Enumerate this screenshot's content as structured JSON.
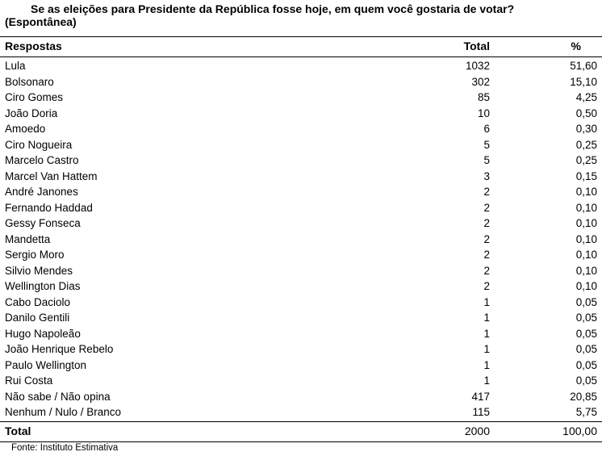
{
  "title": {
    "line1": "Se as eleições para Presidente da República fosse hoje, em quem você gostaria de votar?",
    "line2": "(Espontânea)"
  },
  "header": {
    "name": "Respostas",
    "total": "Total",
    "pct": "%"
  },
  "rows": [
    {
      "name": "Lula",
      "total": "1032",
      "pct": "51,60"
    },
    {
      "name": "Bolsonaro",
      "total": "302",
      "pct": "15,10"
    },
    {
      "name": "Ciro Gomes",
      "total": "85",
      "pct": "4,25"
    },
    {
      "name": "João Doria",
      "total": "10",
      "pct": "0,50"
    },
    {
      "name": "Amoedo",
      "total": "6",
      "pct": "0,30"
    },
    {
      "name": "Ciro Nogueira",
      "total": "5",
      "pct": "0,25"
    },
    {
      "name": "Marcelo Castro",
      "total": "5",
      "pct": "0,25"
    },
    {
      "name": "Marcel Van Hattem",
      "total": "3",
      "pct": "0,15"
    },
    {
      "name": "André Janones",
      "total": "2",
      "pct": "0,10"
    },
    {
      "name": "Fernando Haddad",
      "total": "2",
      "pct": "0,10"
    },
    {
      "name": "Gessy Fonseca",
      "total": "2",
      "pct": "0,10"
    },
    {
      "name": "Mandetta",
      "total": "2",
      "pct": "0,10"
    },
    {
      "name": "Sergio Moro",
      "total": "2",
      "pct": "0,10"
    },
    {
      "name": "Silvio Mendes",
      "total": "2",
      "pct": "0,10"
    },
    {
      "name": "Wellington Dias",
      "total": "2",
      "pct": "0,10"
    },
    {
      "name": "Cabo Daciolo",
      "total": "1",
      "pct": "0,05"
    },
    {
      "name": "Danilo Gentili",
      "total": "1",
      "pct": "0,05"
    },
    {
      "name": "Hugo Napoleão",
      "total": "1",
      "pct": "0,05"
    },
    {
      "name": "João Henrique Rebelo",
      "total": "1",
      "pct": "0,05"
    },
    {
      "name": "Paulo Wellington",
      "total": "1",
      "pct": "0,05"
    },
    {
      "name": "Rui Costa",
      "total": "1",
      "pct": "0,05"
    },
    {
      "name": "Não sabe / Não opina",
      "total": "417",
      "pct": "20,85"
    },
    {
      "name": "Nenhum / Nulo / Branco",
      "total": "115",
      "pct": "5,75"
    }
  ],
  "total_row": {
    "name": "Total",
    "total": "2000",
    "pct": "100,00"
  },
  "source": "Fonte: Instituto Estimativa"
}
